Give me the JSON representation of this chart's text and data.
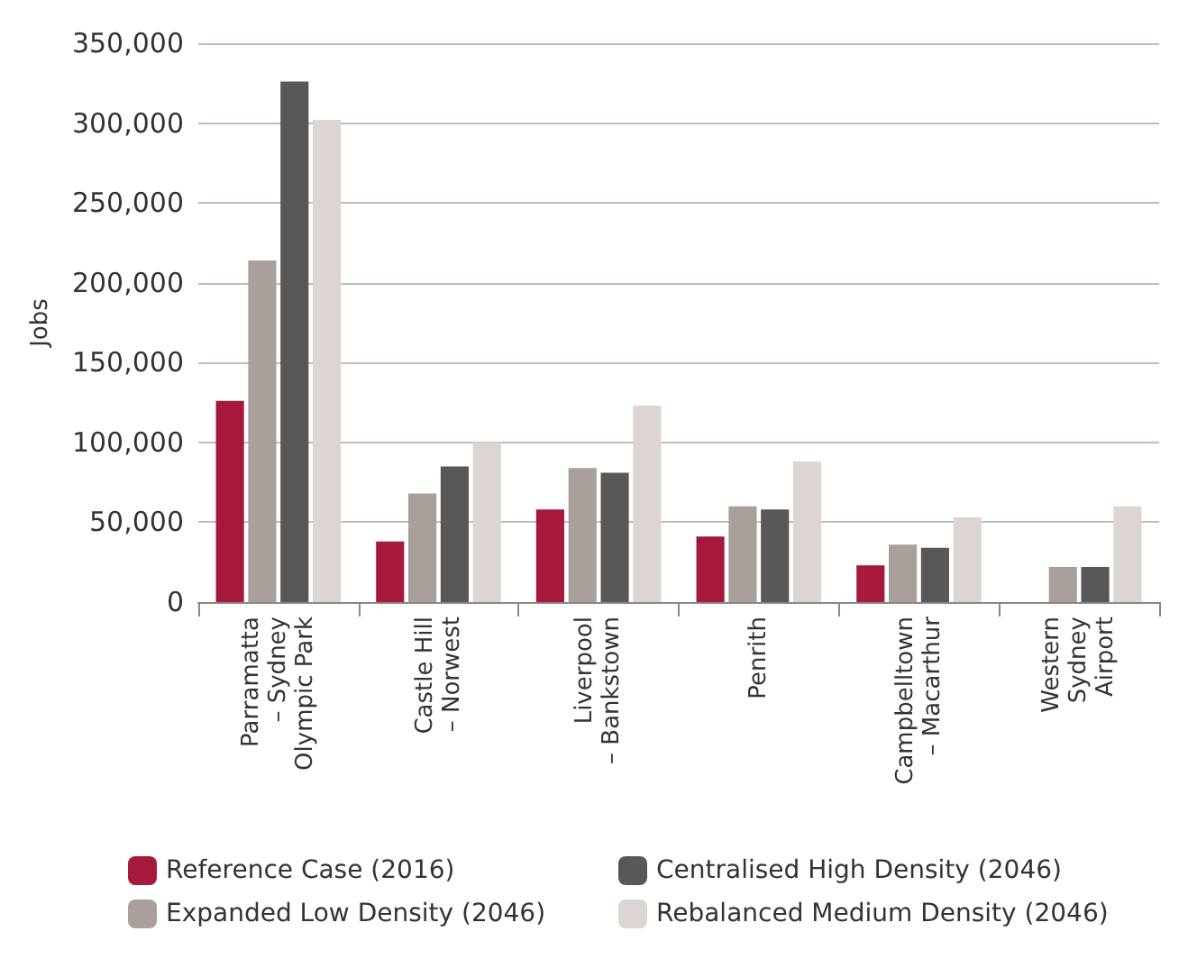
{
  "chart_data": {
    "type": "bar",
    "ylabel": "Jobs",
    "categories": [
      "Parramatta\n– Sydney\nOlympic Park",
      "Castle Hill\n– Norwest",
      "Liverpool\n– Bankstown",
      "Penrith",
      "Campbelltown\n– Macarthur",
      "Western\nSydney\nAirport"
    ],
    "series": [
      {
        "name": "Reference Case (2016)",
        "color": "#a6193c",
        "values": [
          126000,
          38000,
          58000,
          41000,
          23000,
          null
        ]
      },
      {
        "name": "Expanded Low Density (2046)",
        "color": "#aaa09b",
        "values": [
          214000,
          68000,
          84000,
          60000,
          36000,
          22000
        ]
      },
      {
        "name": "Centralised High Density (2046)",
        "color": "#58585a",
        "values": [
          326000,
          85000,
          81000,
          58000,
          34000,
          22000
        ]
      },
      {
        "name": "Rebalanced Medium Density (2046)",
        "color": "#ddd5d3",
        "values": [
          302000,
          100000,
          123000,
          88000,
          53000,
          60000
        ]
      }
    ],
    "ylim": [
      0,
      350000
    ],
    "yticks": [
      {
        "value": 0,
        "label": "0"
      },
      {
        "value": 50000,
        "label": "50,000"
      },
      {
        "value": 100000,
        "label": "100,000"
      },
      {
        "value": 150000,
        "label": "150,000"
      },
      {
        "value": 200000,
        "label": "200,000"
      },
      {
        "value": 250000,
        "label": "250,000"
      },
      {
        "value": 300000,
        "label": "300,000"
      },
      {
        "value": 350000,
        "label": "350,000"
      }
    ],
    "grid": "y",
    "legend": "bottom"
  }
}
